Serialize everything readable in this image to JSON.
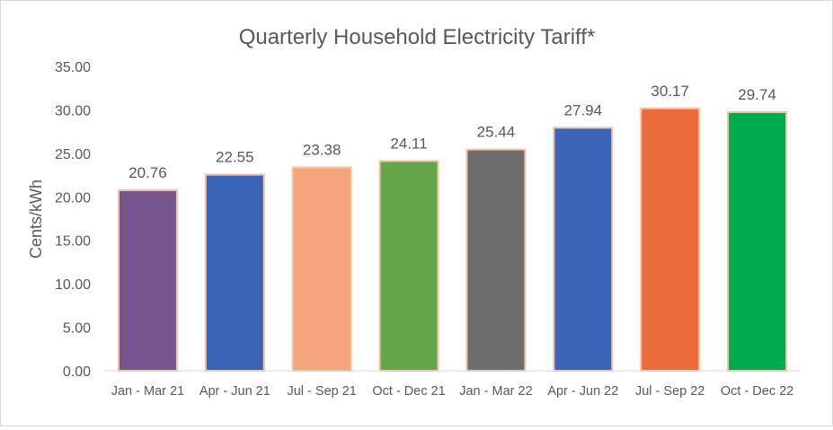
{
  "chart_data": {
    "type": "bar",
    "title": "Quarterly Household Electricity Tariff*",
    "xlabel": "",
    "ylabel": "Cents/kWh",
    "ylim": [
      0,
      35
    ],
    "yticks": [
      "0.00",
      "5.00",
      "10.00",
      "15.00",
      "20.00",
      "25.00",
      "30.00",
      "35.00"
    ],
    "categories": [
      "Jan - Mar 21",
      "Apr - Jun 21",
      "Jul - Sep 21",
      "Oct - Dec 21",
      "Jan - Mar 22",
      "Apr - Jun 22",
      "Jul - Sep 22",
      "Oct - Dec 22"
    ],
    "values": [
      20.76,
      22.55,
      23.38,
      24.11,
      25.44,
      27.94,
      30.17,
      29.74
    ],
    "labels": [
      "20.76",
      "22.55",
      "23.38",
      "24.11",
      "25.44",
      "27.94",
      "30.17",
      "29.74"
    ],
    "colors": [
      "#76558F",
      "#3A64B5",
      "#F3A57D",
      "#63A548",
      "#6D6D6D",
      "#3A64B5",
      "#EC6B3B",
      "#00AB4E"
    ],
    "border_color": "#F8C0A4",
    "grid": false
  }
}
